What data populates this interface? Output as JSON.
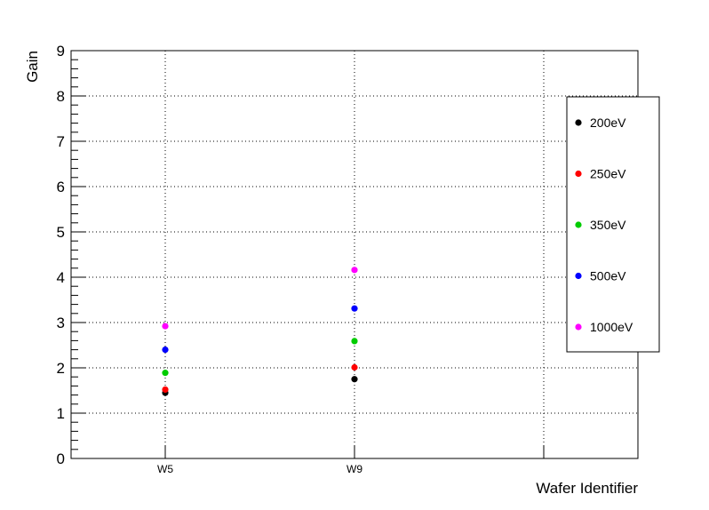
{
  "chart_data": {
    "type": "scatter",
    "xlabel": "Wafer Identifier",
    "ylabel": "Gain",
    "categories": [
      "W5",
      "W9"
    ],
    "ylim": [
      0,
      9
    ],
    "yticks": [
      "0",
      "1",
      "2",
      "3",
      "4",
      "5",
      "6",
      "7",
      "8",
      "9"
    ],
    "grid": true,
    "legend_position": "right",
    "series": [
      {
        "name": "200eV",
        "color": "#000000",
        "values": [
          1.45,
          1.75
        ]
      },
      {
        "name": "250eV",
        "color": "#ff0000",
        "values": [
          1.52,
          2.01
        ]
      },
      {
        "name": "350eV",
        "color": "#00cc00",
        "values": [
          1.89,
          2.59
        ]
      },
      {
        "name": "500eV",
        "color": "#0000ff",
        "values": [
          2.4,
          3.31
        ]
      },
      {
        "name": "1000eV",
        "color": "#ff00ff",
        "values": [
          2.92,
          4.16
        ]
      }
    ]
  }
}
